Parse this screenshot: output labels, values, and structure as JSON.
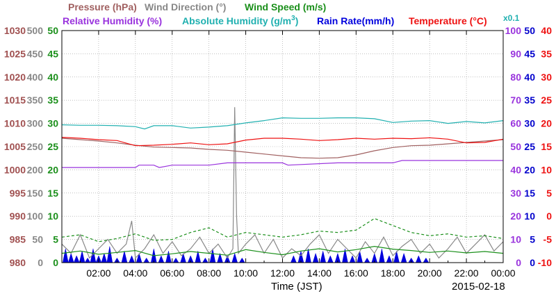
{
  "chart_data": {
    "type": "line",
    "legend": {
      "pressure": "Pressure (hPa)",
      "wind_direction": "Wind Direction (°)",
      "wind_speed": "Wind Speed (m/s)",
      "relative_humidity": "Relative Humidity (%)",
      "absolute_humidity": "Absolute Humidity (g/m",
      "absolute_humidity_sup": "3",
      "absolute_humidity_close": ")",
      "rain_rate": "Rain Rate(mm/h)",
      "temperature": "Temperature (°C)",
      "scale_note": "x0.1"
    },
    "xlabel": "Time (JST)",
    "date": "2015-02-18",
    "x_ticks": [
      "02:00",
      "04:00",
      "06:00",
      "08:00",
      "10:00",
      "12:00",
      "14:00",
      "16:00",
      "18:00",
      "20:00",
      "22:00",
      "00:00"
    ],
    "x_range_hours": [
      0,
      24
    ],
    "grid": true,
    "axes": {
      "pressure": {
        "min": 980,
        "max": 1030,
        "ticks": [
          "1030",
          "1025",
          "1020",
          "1015",
          "1010",
          "1005",
          "1000",
          "995",
          "990",
          "985",
          "980"
        ],
        "color": "#a05050"
      },
      "wind_direction": {
        "min": 0,
        "max": 500,
        "ticks": [
          "500",
          "450",
          "400",
          "350",
          "300",
          "250",
          "200",
          "150",
          "100",
          "50",
          "0"
        ],
        "color": "#888888"
      },
      "wind_speed": {
        "min": 0,
        "max": 50,
        "ticks": [
          "50",
          "45",
          "40",
          "35",
          "30",
          "25",
          "20",
          "15",
          "10",
          "5",
          "0"
        ],
        "color": "#1a8f1a"
      },
      "relative_humidity": {
        "min": 0,
        "max": 100,
        "ticks": [
          "100",
          "90",
          "80",
          "70",
          "60",
          "50",
          "40",
          "30",
          "20",
          "10",
          "0"
        ],
        "color": "#9933dd"
      },
      "rain_rate": {
        "min": 0,
        "max": 50,
        "ticks": [
          "50",
          "45",
          "40",
          "35",
          "30",
          "25",
          "20",
          "15",
          "10",
          "5",
          "0"
        ],
        "color": "#0000cc"
      },
      "temperature": {
        "min": -10,
        "max": 40,
        "ticks": [
          "40",
          "35",
          "30",
          "25",
          "20",
          "15",
          "10",
          "5",
          "0",
          "-5",
          "-10"
        ],
        "color": "#ee1111"
      }
    },
    "colors": {
      "pressure": "#a06060",
      "wind_direction": "#888888",
      "wind_speed": "#1a8f1a",
      "relative_humidity": "#9933dd",
      "absolute_humidity": "#20b0b0",
      "rain_rate": "#0000dd",
      "temperature": "#ee1111",
      "grid": "#999999"
    },
    "series": [
      {
        "key": "pressure",
        "axis": "pressure",
        "x": [
          0,
          1,
          2,
          3,
          4,
          5,
          6,
          7,
          8,
          9,
          10,
          11,
          12,
          13,
          14,
          15,
          16,
          17,
          18,
          19,
          20,
          21,
          22,
          23,
          24
        ],
        "values": [
          1006.8,
          1006.5,
          1006.2,
          1005.8,
          1005.3,
          1004.9,
          1004.8,
          1004.7,
          1004.4,
          1004.2,
          1003.8,
          1003.4,
          1003.0,
          1002.6,
          1002.5,
          1002.6,
          1003.2,
          1004.1,
          1004.8,
          1005.2,
          1005.3,
          1005.6,
          1005.9,
          1006.2,
          1006.5
        ]
      },
      {
        "key": "temperature",
        "axis": "temperature",
        "x": [
          0,
          1,
          2,
          3,
          4,
          5,
          6,
          7,
          8,
          9,
          10,
          11,
          12,
          13,
          14,
          15,
          16,
          17,
          18,
          19,
          20,
          21,
          22,
          23,
          24
        ],
        "values": [
          17.0,
          16.8,
          16.5,
          16.3,
          15.2,
          15.3,
          15.5,
          15.8,
          15.4,
          15.6,
          16.4,
          16.8,
          16.8,
          16.6,
          16.3,
          16.5,
          16.8,
          16.6,
          16.8,
          16.7,
          16.9,
          16.6,
          15.8,
          15.9,
          16.6
        ]
      },
      {
        "key": "absolute_humidity",
        "axis": "temperature",
        "scale_note": "x0.1",
        "x": [
          0,
          1,
          2,
          3,
          4,
          4.5,
          5,
          6,
          7,
          8,
          9,
          10,
          11,
          12,
          13,
          14,
          15,
          16,
          17,
          18,
          19,
          20,
          21,
          22,
          23,
          24
        ],
        "values": [
          19.7,
          19.6,
          19.6,
          19.5,
          19.3,
          18.8,
          19.5,
          19.5,
          19.0,
          19.2,
          19.5,
          20.1,
          20.6,
          21.2,
          21.1,
          21.1,
          21.2,
          21.2,
          21.0,
          20.2,
          20.5,
          20.6,
          20.0,
          20.4,
          20.1,
          20.6
        ]
      },
      {
        "key": "relative_humidity",
        "axis": "relative_humidity",
        "x": [
          0,
          4,
          4.2,
          5,
          5.3,
          6,
          7,
          8,
          9,
          12,
          12.3,
          15,
          17,
          18,
          18.5,
          20,
          22,
          24
        ],
        "values": [
          41,
          41,
          42,
          42,
          41,
          42,
          42,
          42,
          43,
          43,
          42,
          43,
          43,
          43,
          44,
          44,
          44,
          44
        ]
      },
      {
        "key": "wind_direction",
        "axis": "wind_direction",
        "x": [
          0,
          0.5,
          1,
          1.5,
          2,
          2.5,
          3,
          3.5,
          3.8,
          4,
          4.5,
          5,
          5.5,
          6,
          6.5,
          7,
          7.5,
          8,
          8.5,
          9,
          9.3,
          9.4,
          9.5,
          9.6,
          10,
          10.5,
          11,
          11.5,
          12,
          12.5,
          13,
          13.5,
          14,
          14.5,
          15,
          15.5,
          16,
          16.5,
          17,
          17.5,
          18,
          18.5,
          19,
          19.5,
          20,
          20.5,
          21,
          21.5,
          22,
          22.5,
          23,
          23.5,
          24
        ],
        "values": [
          40,
          20,
          60,
          10,
          30,
          50,
          20,
          40,
          90,
          10,
          30,
          60,
          20,
          45,
          15,
          30,
          55,
          20,
          40,
          10,
          30,
          335,
          100,
          20,
          40,
          60,
          20,
          50,
          10,
          30,
          15,
          40,
          60,
          20,
          50,
          30,
          10,
          45,
          20,
          55,
          15,
          35,
          50,
          20,
          40,
          10,
          30,
          55,
          20,
          40,
          60,
          25,
          45
        ]
      },
      {
        "key": "wind_speed",
        "axis": "wind_speed",
        "style": "solid",
        "x": [
          0,
          1,
          2,
          3,
          4,
          5,
          6,
          7,
          8,
          9,
          10,
          11,
          12,
          13,
          14,
          15,
          16,
          17,
          18,
          19,
          20,
          21,
          22,
          23,
          24
        ],
        "values": [
          2.0,
          2.5,
          1.8,
          2.2,
          2.6,
          1.5,
          1.9,
          2.4,
          2.0,
          1.6,
          2.8,
          2.2,
          1.7,
          2.5,
          3.0,
          2.3,
          2.8,
          3.5,
          2.9,
          2.6,
          2.2,
          2.5,
          2.1,
          2.4,
          2.0
        ]
      },
      {
        "key": "wind_speed",
        "axis": "wind_speed",
        "style": "dashed",
        "name": "gust",
        "x": [
          0,
          1,
          2,
          3,
          4,
          5,
          6,
          7,
          8,
          9,
          10,
          11,
          12,
          13,
          14,
          15,
          16,
          17,
          18,
          19,
          20,
          21,
          22,
          23,
          24
        ],
        "values": [
          5.5,
          6.0,
          4.5,
          5.2,
          6.2,
          4.8,
          5.0,
          6.5,
          7.5,
          5.5,
          6.5,
          6.0,
          5.5,
          6.0,
          6.8,
          6.5,
          7.0,
          9.5,
          8.0,
          6.5,
          5.8,
          6.2,
          5.5,
          5.8,
          5.2
        ]
      },
      {
        "key": "rain_rate",
        "axis": "rain_rate",
        "style": "filled",
        "x": [
          0.2,
          0.5,
          0.8,
          1.1,
          1.4,
          1.7,
          2.0,
          2.3,
          2.6,
          3.0,
          3.4,
          3.8,
          4.2,
          4.6,
          5.0,
          5.4,
          5.8,
          6.2,
          6.6,
          7.0,
          7.4,
          7.8,
          8.2,
          8.6,
          9.0,
          9.4,
          9.8,
          12.6,
          13.0,
          13.4,
          13.8,
          14.2,
          14.6,
          15.0,
          15.4,
          15.8,
          16.2,
          16.6,
          17.0,
          17.4,
          17.8,
          18.2,
          18.6,
          19.0,
          19.4,
          19.8
        ],
        "values": [
          3,
          2,
          1.5,
          2.5,
          1,
          3,
          1.5,
          2,
          3.5,
          1,
          2.5,
          1.5,
          2,
          1,
          3,
          1.5,
          2.5,
          1,
          2,
          1.5,
          2.5,
          1,
          3,
          2,
          1.5,
          2,
          1,
          1.5,
          2.5,
          3,
          2,
          2.5,
          1.5,
          2,
          3,
          1.5,
          2.5,
          1,
          2,
          3,
          1.5,
          2.5,
          2,
          1,
          1.5,
          1
        ]
      }
    ]
  }
}
